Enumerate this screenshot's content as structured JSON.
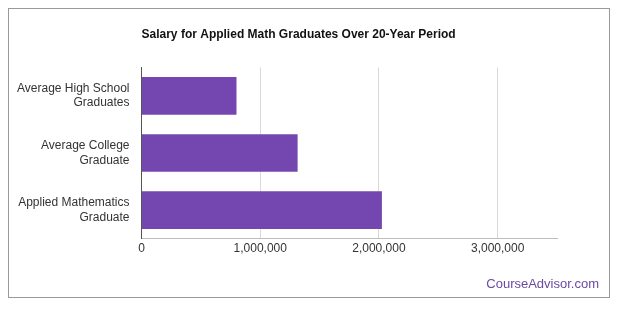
{
  "chart_data": {
    "type": "bar",
    "orientation": "horizontal",
    "title": "Salary for Applied Math Graduates Over 20-Year Period",
    "categories": [
      "Average High School\nGraduates",
      "Average College\nGraduate",
      "Applied Mathematics\nGraduate"
    ],
    "values": [
      800000,
      1315000,
      2025000
    ],
    "color": "#7446b0",
    "xlim": [
      0,
      3500000
    ],
    "xticks": [
      0,
      {
        "value": 1000000,
        "label": "1,000,000"
      },
      {
        "value": 2000000,
        "label": "2,000,000"
      },
      {
        "value": 3000000,
        "label": "3,000,000"
      }
    ],
    "grid": true,
    "annotations": [
      "CourseAdvisor.com"
    ]
  }
}
